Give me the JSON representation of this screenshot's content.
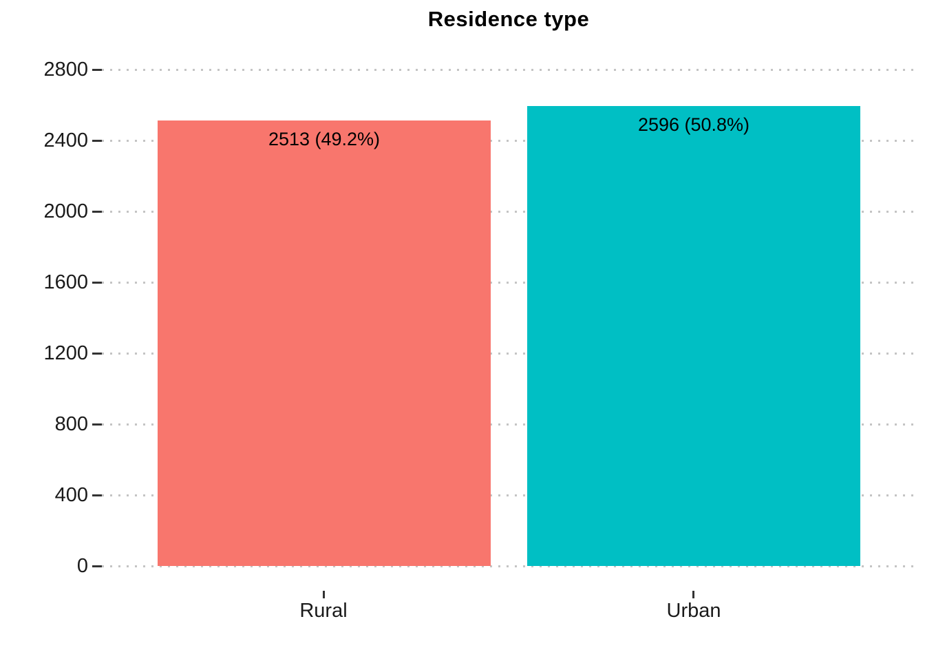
{
  "chart_data": {
    "type": "bar",
    "title": "Residence type",
    "categories": [
      "Rural",
      "Urban"
    ],
    "series": [
      {
        "name": "count",
        "values": [
          2513,
          2596
        ]
      }
    ],
    "bar_labels": [
      "2513 (49.2%)",
      "2596 (50.8%)"
    ],
    "bar_colors": [
      "#F8766D",
      "#00BFC4"
    ],
    "xlabel": "",
    "ylabel": "",
    "ylim": [
      0,
      2800
    ],
    "yticks": [
      0,
      400,
      800,
      1200,
      1600,
      2000,
      2400,
      2800
    ],
    "grid": "horizontal-dotted",
    "legend": "none"
  },
  "colors": {
    "grid": "#C4C4C4",
    "tick": "#333333",
    "axis_text": "#1a1a1a",
    "label_text": "#000000",
    "background": "#ffffff"
  }
}
